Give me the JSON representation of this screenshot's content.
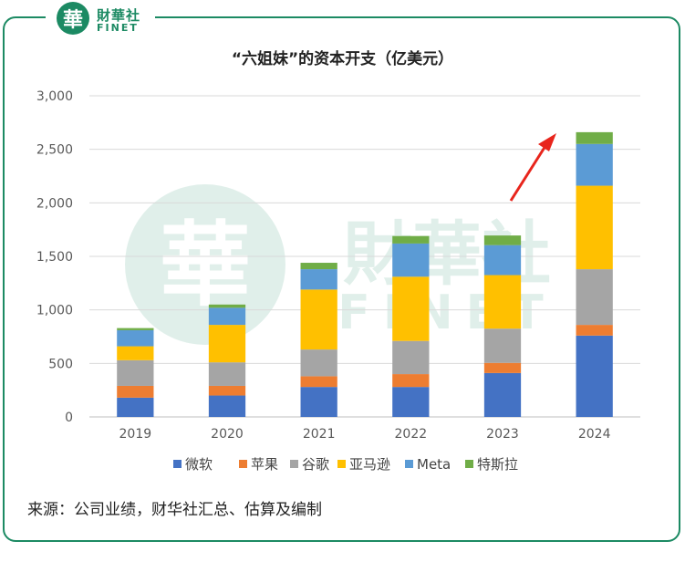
{
  "logo": {
    "seal_char": "華",
    "name_cn": "財華社",
    "name_en": "FINET"
  },
  "watermark": {
    "seal_char": "華",
    "name_cn": "財華社",
    "name_en": "FINET"
  },
  "title": "“六姐妹”的资本开支（亿美元）",
  "source": "来源：公司业绩，财华社汇总、估算及编制",
  "colors": {
    "frame": "#1c8a63",
    "arrow": "#e8251c"
  },
  "chart_data": {
    "type": "bar",
    "stacked": true,
    "categories": [
      "2019",
      "2020",
      "2021",
      "2022",
      "2023",
      "2024"
    ],
    "yticks": [
      "0",
      "500",
      "1,000",
      "1,500",
      "2,000",
      "2,500",
      "3,000"
    ],
    "ylim": [
      0,
      3000
    ],
    "grid": true,
    "legend_position": "bottom",
    "series": [
      {
        "name": "微软",
        "color": "#4472c4",
        "values": [
          180,
          200,
          280,
          280,
          410,
          760
        ]
      },
      {
        "name": "苹果",
        "color": "#ed7d31",
        "values": [
          110,
          90,
          100,
          120,
          95,
          100
        ]
      },
      {
        "name": "谷歌",
        "color": "#a5a5a5",
        "values": [
          240,
          220,
          250,
          310,
          320,
          520
        ]
      },
      {
        "name": "亚马逊",
        "color": "#ffc000",
        "values": [
          130,
          350,
          560,
          600,
          500,
          780
        ]
      },
      {
        "name": "Meta",
        "color": "#5b9bd5",
        "values": [
          150,
          160,
          190,
          310,
          280,
          390
        ]
      },
      {
        "name": "特斯拉",
        "color": "#70ad47",
        "values": [
          20,
          30,
          60,
          70,
          90,
          110
        ]
      }
    ]
  }
}
